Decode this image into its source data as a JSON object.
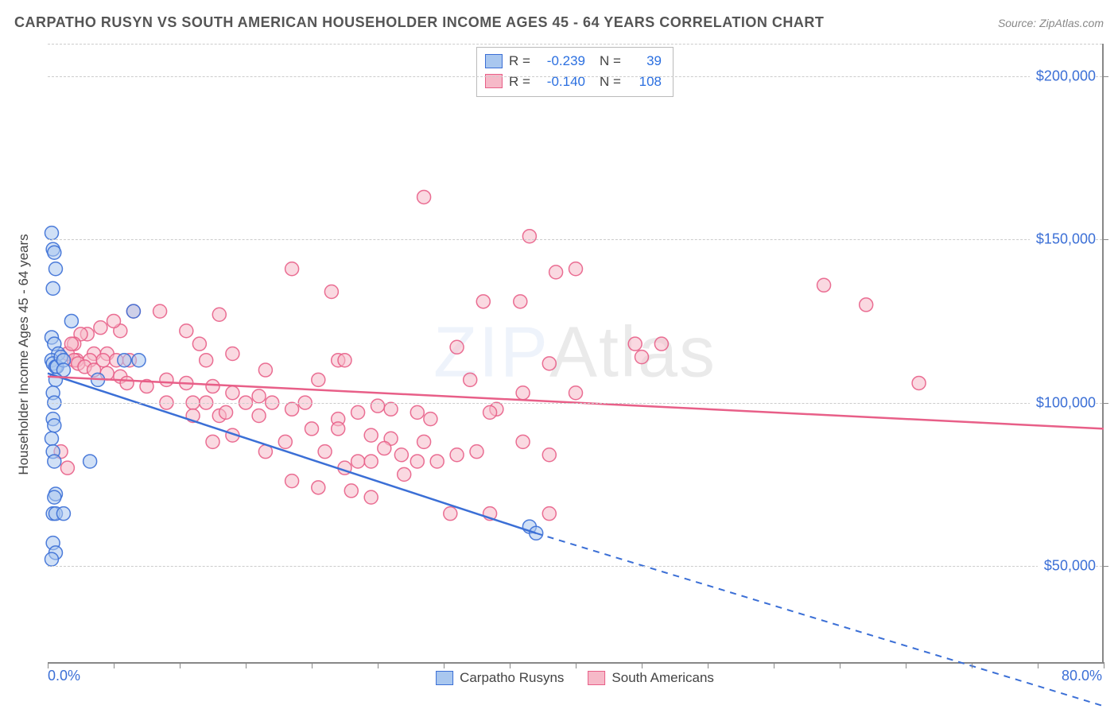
{
  "title": "CARPATHO RUSYN VS SOUTH AMERICAN HOUSEHOLDER INCOME AGES 45 - 64 YEARS CORRELATION CHART",
  "source_label": "Source: ",
  "source_name": "ZipAtlas.com",
  "watermark_a": "ZIP",
  "watermark_b": "Atlas",
  "ylabel": "Householder Income Ages 45 - 64 years",
  "x_min_label": "0.0%",
  "x_max_label": "80.0%",
  "legend_bottom": [
    {
      "label": "Carpatho Rusyns",
      "fill": "#a9c7ef",
      "stroke": "#3b6fd6"
    },
    {
      "label": "South Americans",
      "fill": "#f6b9c8",
      "stroke": "#e85f88"
    }
  ],
  "stats": [
    {
      "fill": "#a9c7ef",
      "stroke": "#3b6fd6",
      "r": "-0.239",
      "n": "39"
    },
    {
      "fill": "#f6b9c8",
      "stroke": "#e85f88",
      "r": "-0.140",
      "n": "108"
    }
  ],
  "chart": {
    "type": "scatter",
    "xlim": [
      0,
      80
    ],
    "ylim": [
      20000,
      210000
    ],
    "y_gridlines": [
      50000,
      100000,
      150000,
      200000
    ],
    "y_tick_labels": [
      "$50,000",
      "$100,000",
      "$150,000",
      "$200,000"
    ],
    "x_ticks": [
      0,
      5,
      10,
      15,
      20,
      25,
      30,
      35,
      40,
      45,
      50,
      55,
      60,
      65,
      70,
      75,
      80
    ],
    "marker_radius": 8.5,
    "marker_opacity": 0.55,
    "series": [
      {
        "name": "Carpatho Rusyns",
        "fill": "#a9c7ef",
        "stroke": "#3b6fd6",
        "trend": {
          "x1": 0,
          "y1": 109000,
          "x2": 37,
          "y2": 60000,
          "solid_until_x": 37,
          "x3": 80,
          "y3": 7000
        },
        "points": [
          [
            0.3,
            152000
          ],
          [
            0.4,
            147000
          ],
          [
            0.5,
            146000
          ],
          [
            0.6,
            141000
          ],
          [
            0.4,
            135000
          ],
          [
            0.3,
            120000
          ],
          [
            0.5,
            118000
          ],
          [
            0.8,
            115000
          ],
          [
            0.3,
            113000
          ],
          [
            0.4,
            112000
          ],
          [
            0.6,
            111000
          ],
          [
            0.7,
            111000
          ],
          [
            1.0,
            114000
          ],
          [
            1.2,
            113000
          ],
          [
            1.2,
            110000
          ],
          [
            0.6,
            107000
          ],
          [
            0.4,
            103000
          ],
          [
            0.5,
            100000
          ],
          [
            0.4,
            95000
          ],
          [
            0.5,
            93000
          ],
          [
            0.3,
            89000
          ],
          [
            0.4,
            85000
          ],
          [
            0.5,
            82000
          ],
          [
            3.2,
            82000
          ],
          [
            0.6,
            72000
          ],
          [
            0.5,
            71000
          ],
          [
            0.4,
            66000
          ],
          [
            0.6,
            66000
          ],
          [
            1.2,
            66000
          ],
          [
            0.4,
            57000
          ],
          [
            0.6,
            54000
          ],
          [
            0.3,
            52000
          ],
          [
            6.5,
            128000
          ],
          [
            6.9,
            113000
          ],
          [
            3.8,
            107000
          ],
          [
            5.8,
            113000
          ],
          [
            36.5,
            62000
          ],
          [
            37.0,
            60000
          ],
          [
            1.8,
            125000
          ]
        ]
      },
      {
        "name": "South Americans",
        "fill": "#f6b9c8",
        "stroke": "#e85f88",
        "trend": {
          "x1": 0,
          "y1": 108000,
          "x2": 80,
          "y2": 92000,
          "solid_until_x": 80
        },
        "points": [
          [
            28.5,
            163000
          ],
          [
            36.5,
            151000
          ],
          [
            38.5,
            140000
          ],
          [
            40.0,
            141000
          ],
          [
            58.8,
            136000
          ],
          [
            33.0,
            131000
          ],
          [
            35.8,
            131000
          ],
          [
            44.5,
            118000
          ],
          [
            46.5,
            118000
          ],
          [
            18.5,
            141000
          ],
          [
            21.5,
            134000
          ],
          [
            22.0,
            113000
          ],
          [
            22.5,
            113000
          ],
          [
            16.5,
            110000
          ],
          [
            13.0,
            127000
          ],
          [
            14.0,
            115000
          ],
          [
            12.0,
            113000
          ],
          [
            11.5,
            118000
          ],
          [
            10.5,
            122000
          ],
          [
            8.5,
            128000
          ],
          [
            6.5,
            128000
          ],
          [
            5.5,
            122000
          ],
          [
            5.0,
            125000
          ],
          [
            4.0,
            123000
          ],
          [
            3.0,
            121000
          ],
          [
            2.5,
            121000
          ],
          [
            2.0,
            118000
          ],
          [
            3.5,
            115000
          ],
          [
            4.5,
            115000
          ],
          [
            2.2,
            113000
          ],
          [
            3.2,
            113000
          ],
          [
            4.2,
            113000
          ],
          [
            5.2,
            113000
          ],
          [
            6.2,
            113000
          ],
          [
            1.5,
            115000
          ],
          [
            1.8,
            118000
          ],
          [
            2.0,
            113000
          ],
          [
            2.3,
            112000
          ],
          [
            2.8,
            111000
          ],
          [
            3.5,
            110000
          ],
          [
            4.5,
            109000
          ],
          [
            5.5,
            108000
          ],
          [
            6.0,
            106000
          ],
          [
            7.5,
            105000
          ],
          [
            9.0,
            107000
          ],
          [
            10.5,
            106000
          ],
          [
            12.5,
            105000
          ],
          [
            14.0,
            103000
          ],
          [
            16.0,
            102000
          ],
          [
            9.0,
            100000
          ],
          [
            11.0,
            100000
          ],
          [
            12.0,
            100000
          ],
          [
            15.0,
            100000
          ],
          [
            17.0,
            100000
          ],
          [
            11.0,
            96000
          ],
          [
            13.0,
            96000
          ],
          [
            13.5,
            97000
          ],
          [
            16.0,
            96000
          ],
          [
            18.5,
            98000
          ],
          [
            19.5,
            100000
          ],
          [
            22.0,
            95000
          ],
          [
            23.5,
            97000
          ],
          [
            25.0,
            99000
          ],
          [
            26.0,
            98000
          ],
          [
            28.0,
            97000
          ],
          [
            29.0,
            95000
          ],
          [
            20.0,
            92000
          ],
          [
            22.0,
            92000
          ],
          [
            24.5,
            90000
          ],
          [
            26.0,
            89000
          ],
          [
            28.5,
            88000
          ],
          [
            25.5,
            86000
          ],
          [
            26.8,
            84000
          ],
          [
            28.0,
            82000
          ],
          [
            21.0,
            85000
          ],
          [
            22.5,
            80000
          ],
          [
            23.5,
            82000
          ],
          [
            24.5,
            82000
          ],
          [
            27.0,
            78000
          ],
          [
            29.5,
            82000
          ],
          [
            23.0,
            73000
          ],
          [
            24.5,
            71000
          ],
          [
            20.5,
            74000
          ],
          [
            18.5,
            76000
          ],
          [
            31.0,
            84000
          ],
          [
            32.5,
            85000
          ],
          [
            34.0,
            98000
          ],
          [
            36.0,
            88000
          ],
          [
            38.0,
            84000
          ],
          [
            32.0,
            107000
          ],
          [
            40.0,
            103000
          ],
          [
            36.0,
            103000
          ],
          [
            38.0,
            112000
          ],
          [
            31.0,
            117000
          ],
          [
            45.0,
            114000
          ],
          [
            30.5,
            66000
          ],
          [
            33.5,
            66000
          ],
          [
            38.0,
            66000
          ],
          [
            33.5,
            97000
          ],
          [
            18.0,
            88000
          ],
          [
            16.5,
            85000
          ],
          [
            14.0,
            90000
          ],
          [
            12.5,
            88000
          ],
          [
            20.5,
            107000
          ],
          [
            66.0,
            106000
          ],
          [
            62.0,
            130000
          ],
          [
            1.0,
            85000
          ],
          [
            1.5,
            80000
          ]
        ]
      }
    ]
  }
}
